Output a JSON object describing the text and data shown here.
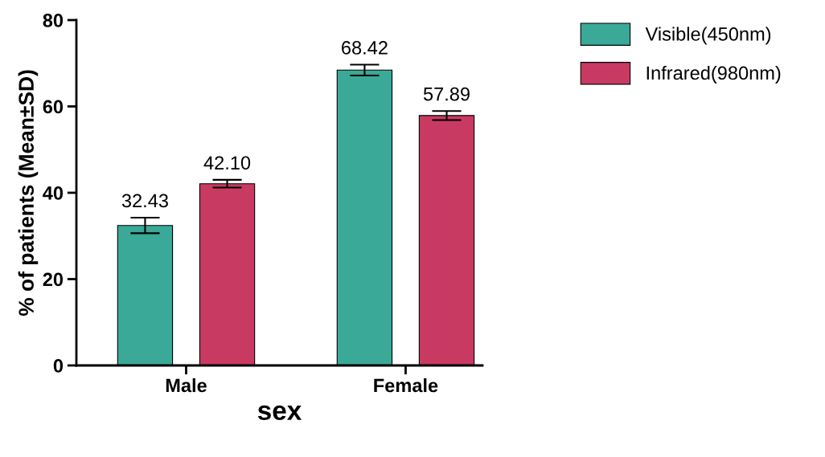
{
  "chart_data": {
    "type": "bar",
    "xlabel": "sex",
    "ylabel": "% of patients (Mean±SD)",
    "categories": [
      "Male",
      "Female"
    ],
    "series": [
      {
        "name": "Visible(450nm)",
        "color": "#3aa997",
        "values": [
          32.43,
          68.42
        ],
        "value_labels": [
          "32.43",
          "68.42"
        ],
        "errors": [
          1.8,
          1.25
        ]
      },
      {
        "name": "Infrared(980nm)",
        "color": "#c93a62",
        "values": [
          42.1,
          57.89
        ],
        "value_labels": [
          "42.10",
          "57.89"
        ],
        "errors": [
          0.9,
          1.05
        ]
      }
    ],
    "ylim": [
      0,
      80
    ],
    "yticks": [
      0,
      20,
      40,
      60,
      80
    ],
    "grid": false,
    "legend": "top right"
  }
}
